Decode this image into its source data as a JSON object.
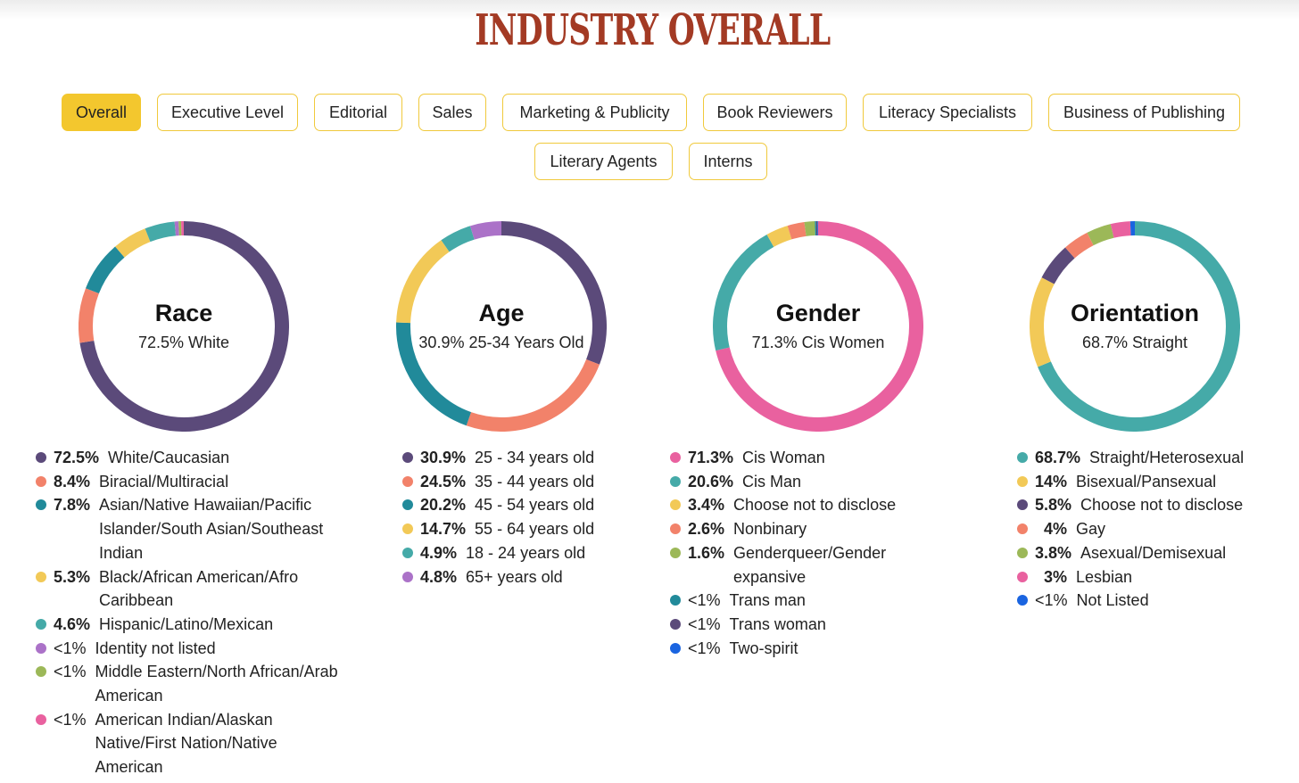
{
  "title": "INDUSTRY OVERALL",
  "tabs": [
    {
      "label": "Overall",
      "active": true
    },
    {
      "label": "Executive Level",
      "active": false
    },
    {
      "label": "Editorial",
      "active": false
    },
    {
      "label": "Sales",
      "active": false
    },
    {
      "label": "Marketing & Publicity",
      "active": false
    },
    {
      "label": "Book Reviewers",
      "active": false
    },
    {
      "label": "Literacy Specialists",
      "active": false
    },
    {
      "label": "Business of Publishing",
      "active": false
    },
    {
      "label": "Literary Agents",
      "active": false
    },
    {
      "label": "Interns",
      "active": false
    }
  ],
  "chart_data": [
    {
      "type": "pie",
      "donut": true,
      "title": "Race",
      "subtitle": "72.5% White",
      "slices": [
        {
          "label": "White/Caucasian",
          "display": "72.5%",
          "value": 72.5,
          "color": "#5b4a7a"
        },
        {
          "label": "Biracial/Multiracial",
          "display": "8.4%",
          "value": 8.4,
          "color": "#f2826a"
        },
        {
          "label": "Asian/Native Hawaiian/Pacific Islander/South Asian/Southeast Indian",
          "display": "7.8%",
          "value": 7.8,
          "color": "#218a9a"
        },
        {
          "label": "Black/African American/Afro Caribbean",
          "display": "5.3%",
          "value": 5.3,
          "color": "#f2c957"
        },
        {
          "label": "Hispanic/Latino/Mexican",
          "display": "4.6%",
          "value": 4.6,
          "color": "#45aaa8"
        },
        {
          "label": "Identity not listed",
          "display": "<1%",
          "value": 0.6,
          "color": "#ab72c8"
        },
        {
          "label": "Middle Eastern/North African/Arab American",
          "display": "<1%",
          "value": 0.4,
          "color": "#9cb858"
        },
        {
          "label": "American Indian/Alaskan Native/First Nation/Native American",
          "display": "<1%",
          "value": 0.4,
          "color": "#e9619f"
        }
      ]
    },
    {
      "type": "pie",
      "donut": true,
      "title": "Age",
      "subtitle": "30.9% 25-34 Years Old",
      "slices": [
        {
          "label": "25 - 34 years old",
          "display": "30.9%",
          "value": 30.9,
          "color": "#5b4a7a"
        },
        {
          "label": "35 - 44 years old",
          "display": "24.5%",
          "value": 24.5,
          "color": "#f2826a"
        },
        {
          "label": "45 - 54 years old",
          "display": "20.2%",
          "value": 20.2,
          "color": "#218a9a"
        },
        {
          "label": "55 - 64 years old",
          "display": "14.7%",
          "value": 14.7,
          "color": "#f2c957"
        },
        {
          "label": "18 - 24 years old",
          "display": "4.9%",
          "value": 4.9,
          "color": "#45aaa8"
        },
        {
          "label": "65+ years old",
          "display": "4.8%",
          "value": 4.8,
          "color": "#ab72c8"
        }
      ]
    },
    {
      "type": "pie",
      "donut": true,
      "title": "Gender",
      "subtitle": "71.3% Cis Women",
      "slices": [
        {
          "label": "Cis Woman",
          "display": "71.3%",
          "value": 71.3,
          "color": "#e9619f"
        },
        {
          "label": "Cis Man",
          "display": "20.6%",
          "value": 20.6,
          "color": "#45aaa8"
        },
        {
          "label": "Choose not to disclose",
          "display": "3.4%",
          "value": 3.4,
          "color": "#f2c957"
        },
        {
          "label": "Nonbinary",
          "display": "2.6%",
          "value": 2.6,
          "color": "#f2826a"
        },
        {
          "label": "Genderqueer/Gender expansive",
          "display": "1.6%",
          "value": 1.6,
          "color": "#9cb858"
        },
        {
          "label": "Trans man",
          "display": "<1%",
          "value": 0.2,
          "color": "#218a9a"
        },
        {
          "label": "Trans woman",
          "display": "<1%",
          "value": 0.2,
          "color": "#5b4a7a"
        },
        {
          "label": "Two-spirit",
          "display": "<1%",
          "value": 0.1,
          "color": "#1a64e0"
        }
      ]
    },
    {
      "type": "pie",
      "donut": true,
      "title": "Orientation",
      "subtitle": "68.7% Straight",
      "slices": [
        {
          "label": "Straight/Heterosexual",
          "display": "68.7%",
          "value": 68.7,
          "color": "#45aaa8"
        },
        {
          "label": "Bisexual/Pansexual",
          "display": "14%",
          "value": 14,
          "color": "#f2c957"
        },
        {
          "label": "Choose not to disclose",
          "display": "5.8%",
          "value": 5.8,
          "color": "#5b4a7a"
        },
        {
          "label": "Gay",
          "display": "4%",
          "value": 4,
          "color": "#f2826a"
        },
        {
          "label": "Asexual/Demisexual",
          "display": "3.8%",
          "value": 3.8,
          "color": "#9cb858"
        },
        {
          "label": "Lesbian",
          "display": "3%",
          "value": 3,
          "color": "#e9619f"
        },
        {
          "label": "Not Listed",
          "display": "<1%",
          "value": 0.7,
          "color": "#1a64e0"
        }
      ]
    }
  ]
}
